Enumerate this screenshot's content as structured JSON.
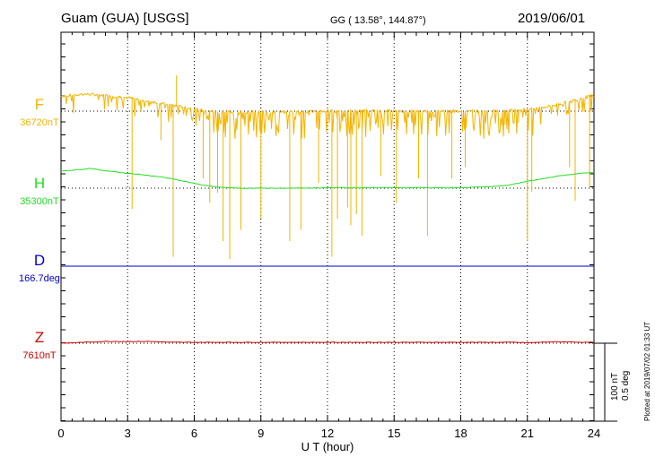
{
  "header": {
    "station": "Guam (GUA)  [USGS]",
    "coords": "GG ( 13.58°, 144.87°)",
    "date": "2019/06/01"
  },
  "scale": {
    "nt": "100 nT",
    "deg": "0.5 deg"
  },
  "plotted": "Plotted at 2019/07/02 01:33 UT",
  "chart_data": {
    "type": "line",
    "xlabel": "U T (hour)",
    "xlim": [
      0,
      24
    ],
    "xticks": [
      0,
      3,
      6,
      9,
      12,
      15,
      18,
      21,
      24
    ],
    "xtick_labels": [
      "0",
      "3",
      "6",
      "9",
      "12",
      "15",
      "18",
      "21",
      "24"
    ],
    "grid": "dotted",
    "series": [
      {
        "key": "F",
        "name": "F",
        "baseline_label": "36720nT",
        "color": "#f4b400",
        "x": [
          0.0,
          0.5,
          1.0,
          1.5,
          2.0,
          2.5,
          3.0,
          3.5,
          4.0,
          4.5,
          5.0,
          5.5,
          6.0,
          6.5,
          7.0,
          7.5,
          8.0,
          8.5,
          9.0,
          9.5,
          10.0,
          10.5,
          11.0,
          11.5,
          12.0,
          12.5,
          13.0,
          13.5,
          14.0,
          14.5,
          15.0,
          15.5,
          16.0,
          16.5,
          17.0,
          17.5,
          18.0,
          18.5,
          19.0,
          19.5,
          20.0,
          20.5,
          21.0,
          21.5,
          22.0,
          22.5,
          23.0,
          23.5,
          24.0
        ],
        "y": [
          34,
          36,
          38,
          37,
          35,
          33,
          30,
          26,
          22,
          17,
          13,
          9,
          4,
          1,
          -1,
          -2,
          -2,
          -2,
          -2,
          -2,
          -2,
          -1,
          -1,
          0,
          0,
          1,
          1,
          1,
          0,
          0,
          0,
          0,
          0,
          0,
          0,
          0,
          0,
          0,
          0,
          0,
          1,
          2,
          4,
          7,
          11,
          16,
          23,
          30,
          35
        ],
        "spikes": [
          {
            "x": 2.7,
            "y": 33
          },
          {
            "x": 3.2,
            "y": -218
          },
          {
            "x": 4.5,
            "y": -65
          },
          {
            "x": 5.05,
            "y": -325
          },
          {
            "x": 5.2,
            "y": 80
          },
          {
            "x": 6.4,
            "y": -150
          },
          {
            "x": 6.7,
            "y": -205
          },
          {
            "x": 7.05,
            "y": -182
          },
          {
            "x": 7.3,
            "y": -290
          },
          {
            "x": 7.6,
            "y": -330
          },
          {
            "x": 8.1,
            "y": -265
          },
          {
            "x": 9.0,
            "y": -240
          },
          {
            "x": 10.3,
            "y": -290
          },
          {
            "x": 10.8,
            "y": -265
          },
          {
            "x": 11.6,
            "y": -160
          },
          {
            "x": 12.2,
            "y": -325
          },
          {
            "x": 12.45,
            "y": -240
          },
          {
            "x": 12.9,
            "y": -215
          },
          {
            "x": 13.05,
            "y": -255
          },
          {
            "x": 13.3,
            "y": -230
          },
          {
            "x": 13.55,
            "y": -278
          },
          {
            "x": 14.4,
            "y": -145
          },
          {
            "x": 15.1,
            "y": -205
          },
          {
            "x": 16.1,
            "y": -150
          },
          {
            "x": 16.5,
            "y": -278
          },
          {
            "x": 17.6,
            "y": -150
          },
          {
            "x": 18.2,
            "y": -125
          },
          {
            "x": 20.0,
            "y": -30
          },
          {
            "x": 20.6,
            "y": -26
          },
          {
            "x": 21.0,
            "y": -290
          },
          {
            "x": 21.2,
            "y": -180
          },
          {
            "x": 22.9,
            "y": -125
          },
          {
            "x": 23.15,
            "y": -200
          },
          {
            "x": 23.8,
            "y": -170
          }
        ],
        "noise_region": [
          6.3,
          21.5
        ]
      },
      {
        "key": "H",
        "name": "H",
        "baseline_label": "35300nT",
        "color": "#22dd22",
        "x": [
          0.0,
          0.5,
          1.0,
          1.3,
          1.6,
          2.0,
          2.5,
          3.0,
          3.5,
          4.0,
          4.5,
          5.0,
          5.5,
          6.0,
          6.5,
          7.0,
          7.5,
          8.0,
          9.0,
          10.0,
          11.0,
          12.0,
          13.0,
          14.0,
          15.0,
          16.0,
          17.0,
          18.0,
          18.5,
          19.0,
          19.5,
          20.0,
          20.5,
          21.0,
          21.5,
          22.0,
          22.5,
          23.0,
          23.5,
          24.0
        ],
        "y": [
          38,
          40,
          42,
          44,
          42,
          39,
          36,
          33,
          31,
          28,
          25,
          21,
          16,
          11,
          6,
          3,
          1,
          0,
          0,
          0,
          0,
          1,
          1,
          1,
          1,
          1,
          1,
          1,
          2,
          3,
          4,
          6,
          10,
          15,
          20,
          24,
          28,
          31,
          34,
          35
        ]
      },
      {
        "key": "D",
        "name": "D",
        "baseline_label": "166.7deg",
        "color": "#0000cc",
        "x": [
          0,
          4,
          8,
          12,
          16,
          20,
          24
        ],
        "y": [
          0,
          0,
          0,
          0,
          0,
          0,
          0
        ]
      },
      {
        "key": "Z",
        "name": "Z",
        "baseline_label": "7610nT",
        "color": "#cc0000",
        "x": [
          0.0,
          0.5,
          1.0,
          1.5,
          2.0,
          2.5,
          3.0,
          3.5,
          4.0,
          4.5,
          5.0,
          5.5,
          6.0,
          7.0,
          8.0,
          9.0,
          10.0,
          11.0,
          12.0,
          13.0,
          14.0,
          15.0,
          16.0,
          17.0,
          18.0,
          19.0,
          20.0,
          20.5,
          21.0,
          21.5,
          22.0,
          22.5,
          23.0,
          23.5,
          24.0
        ],
        "y": [
          0,
          1,
          2,
          3,
          4,
          4,
          4,
          4,
          4,
          3,
          2,
          2,
          2,
          2,
          2,
          2,
          2,
          2,
          2,
          2,
          2,
          2,
          2,
          2,
          2,
          2,
          2,
          2,
          1,
          2,
          3,
          3,
          3,
          2,
          2
        ]
      }
    ]
  }
}
